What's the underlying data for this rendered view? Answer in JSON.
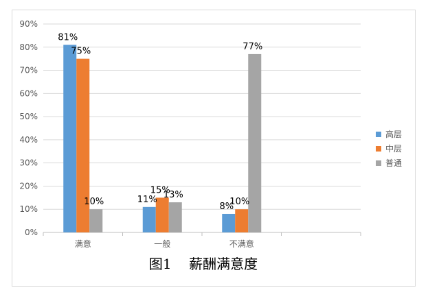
{
  "chart_data": {
    "type": "bar",
    "categories": [
      "满意",
      "一般",
      "不满意"
    ],
    "series": [
      {
        "name": "高层",
        "values": [
          81,
          11,
          8
        ],
        "labels": [
          "81%",
          "11%",
          "8%"
        ],
        "color": "#5b9bd5"
      },
      {
        "name": "中层",
        "values": [
          75,
          15,
          10
        ],
        "labels": [
          "75%",
          "15%",
          "10%"
        ],
        "color": "#ed7d31"
      },
      {
        "name": "普通",
        "values": [
          10,
          13,
          77
        ],
        "labels": [
          "10%",
          "13%",
          "77%"
        ],
        "color": "#a5a5a5"
      }
    ],
    "y_ticks": [
      "0%",
      "10%",
      "20%",
      "30%",
      "40%",
      "50%",
      "60%",
      "70%",
      "80%",
      "90%"
    ],
    "ylim": [
      0,
      90
    ],
    "grid": true,
    "legend_position": "right",
    "title": "",
    "xlabel": "",
    "ylabel": ""
  },
  "caption": "图1    薪酬满意度"
}
